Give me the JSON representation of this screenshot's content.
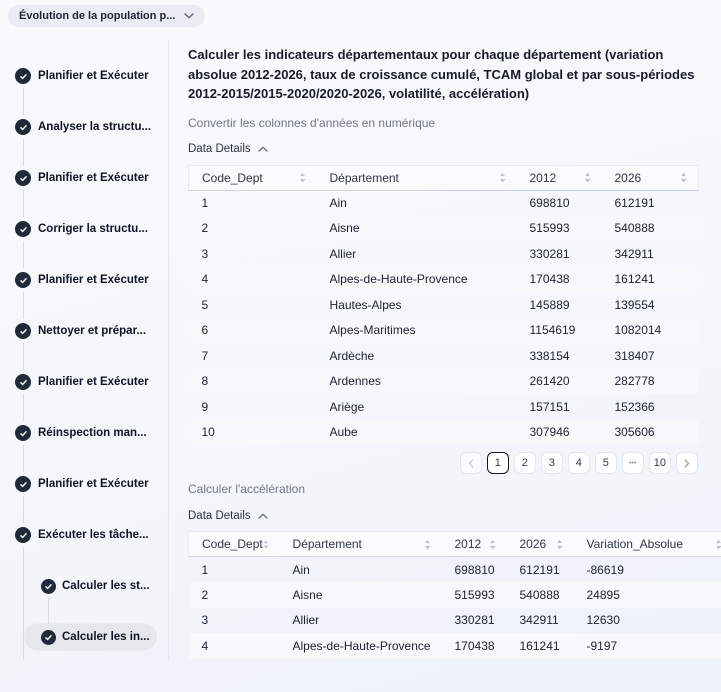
{
  "header": {
    "project_selector": {
      "label": "Évolution de la population p...",
      "icon": "chevron-down-icon"
    }
  },
  "sidebar": {
    "steps": [
      {
        "label": "Planifier et Exécuter"
      },
      {
        "label": "Analyser la structu..."
      },
      {
        "label": "Planifier et Exécuter"
      },
      {
        "label": "Corriger la structu..."
      },
      {
        "label": "Planifier et Exécuter"
      },
      {
        "label": "Nettoyer et prépar..."
      },
      {
        "label": "Planifier et Exécuter"
      },
      {
        "label": "Réinspection man..."
      },
      {
        "label": "Planifier et Exécuter"
      },
      {
        "label": "Exécuter les tâche..."
      }
    ],
    "substeps": [
      {
        "label": "Calculer les st...",
        "active": false
      },
      {
        "label": "Calculer les in...",
        "active": true
      }
    ],
    "check_color": "#212a39",
    "active_highlight_color": "#e4e7ec"
  },
  "main": {
    "title": "Calculer les indicateurs départementaux pour chaque département (variation absolue 2012-2026, taux de croissance cumulé, TCAM global et par sous-périodes 2012-2015/2015-2020/2020-2026, volatilité, accélération)",
    "sections": [
      {
        "subtitle": "Convertir les colonnes d'années en numérique",
        "details_label": "Data Details",
        "table": {
          "columns": [
            "Code_Dept",
            "Département",
            "2012",
            "2026"
          ],
          "rows": [
            [
              "1",
              "Ain",
              "698810",
              "612191"
            ],
            [
              "2",
              "Aisne",
              "515993",
              "540888"
            ],
            [
              "3",
              "Allier",
              "330281",
              "342911"
            ],
            [
              "4",
              "Alpes-de-Haute-Provence",
              "170438",
              "161241"
            ],
            [
              "5",
              "Hautes-Alpes",
              "145889",
              "139554"
            ],
            [
              "6",
              "Alpes-Maritimes",
              "1154619",
              "1082014"
            ],
            [
              "7",
              "Ardèche",
              "338154",
              "318407"
            ],
            [
              "8",
              "Ardennes",
              "261420",
              "282778"
            ],
            [
              "9",
              "Ariège",
              "157151",
              "152366"
            ],
            [
              "10",
              "Aube",
              "307946",
              "305606"
            ]
          ]
        },
        "pagination": {
          "pages": [
            "1",
            "2",
            "3",
            "4",
            "5",
            "•••",
            "10"
          ],
          "active_page": "1"
        }
      },
      {
        "subtitle": "Calculer l'accélération",
        "details_label": "Data Details",
        "table": {
          "columns": [
            "Code_Dept",
            "Département",
            "2012",
            "2026",
            "Variation_Absolue"
          ],
          "rows": [
            [
              "1",
              "Ain",
              "698810",
              "612191",
              "-86619"
            ],
            [
              "2",
              "Aisne",
              "515993",
              "540888",
              "24895"
            ],
            [
              "3",
              "Allier",
              "330281",
              "342911",
              "12630"
            ],
            [
              "4",
              "Alpes-de-Haute-Provence",
              "170438",
              "161241",
              "-9197"
            ]
          ]
        }
      }
    ]
  }
}
